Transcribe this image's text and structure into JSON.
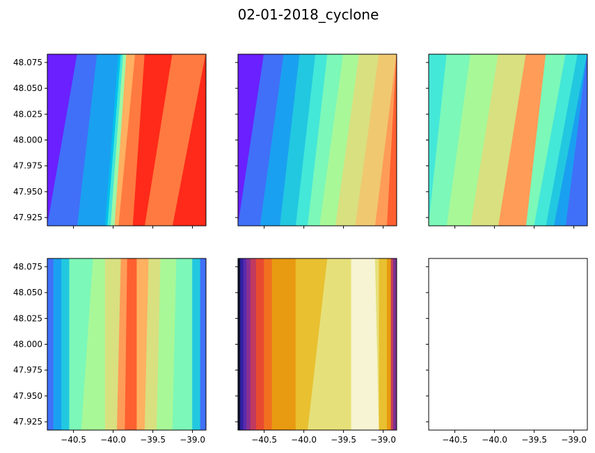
{
  "chart_data": {
    "type": "contour",
    "title": "02-01-2018_cyclone",
    "subplot_grid": [
      2,
      3
    ],
    "shared_axes": true,
    "xlim": [
      -40.83,
      -38.83
    ],
    "ylim": [
      47.917,
      48.083
    ],
    "x_ticks": [
      -40.5,
      -40.0,
      -39.5,
      -39.0
    ],
    "x_tick_labels": [
      "−40.5",
      "−40.0",
      "−39.5",
      "−39.0"
    ],
    "y_ticks": [
      47.925,
      47.95,
      47.975,
      48.0,
      48.025,
      48.05,
      48.075
    ],
    "y_tick_labels": [
      "47.925",
      "47.950",
      "47.975",
      "48.000",
      "48.025",
      "48.050",
      "48.075"
    ],
    "x_tick_labels_shown_on_row": 2,
    "y_tick_labels_shown_on_col": 1,
    "panels": [
      {
        "row": 1,
        "col": 1,
        "colormap": "rainbow",
        "bands": [
          {
            "x_bottom": -40.83,
            "x_top": -40.83,
            "color": "#6a20ff"
          },
          {
            "x_bottom": -40.83,
            "x_top": -40.45,
            "color": "#4070f8"
          },
          {
            "x_bottom": -40.45,
            "x_top": -40.2,
            "color": "#1aa0f0"
          },
          {
            "x_bottom": -40.1,
            "x_top": -39.93,
            "color": "#00c0ec"
          },
          {
            "x_bottom": -40.07,
            "x_top": -39.9,
            "color": "#44e8d8"
          },
          {
            "x_bottom": -40.03,
            "x_top": -39.87,
            "color": "#9cf7a6"
          },
          {
            "x_bottom": -39.98,
            "x_top": -39.83,
            "color": "#ffb060"
          },
          {
            "x_bottom": -39.93,
            "x_top": -39.72,
            "color": "#ff7a40"
          },
          {
            "x_bottom": -39.75,
            "x_top": -39.6,
            "color": "#ff2a1a"
          },
          {
            "x_bottom": -39.6,
            "x_top": -39.25,
            "color": "#ff7a40"
          },
          {
            "x_bottom": -39.25,
            "x_top": -38.83,
            "color": "#ff2a1a"
          }
        ]
      },
      {
        "row": 1,
        "col": 2,
        "colormap": "rainbow",
        "bands": [
          {
            "x_bottom": -40.83,
            "x_top": -40.83,
            "color": "#6a20ff"
          },
          {
            "x_bottom": -40.83,
            "x_top": -40.5,
            "color": "#4070f8"
          },
          {
            "x_bottom": -40.55,
            "x_top": -40.25,
            "color": "#1aa0f0"
          },
          {
            "x_bottom": -40.3,
            "x_top": -40.05,
            "color": "#22c8e0"
          },
          {
            "x_bottom": -40.1,
            "x_top": -39.85,
            "color": "#44e8d8"
          },
          {
            "x_bottom": -39.95,
            "x_top": -39.7,
            "color": "#7cf8b8"
          },
          {
            "x_bottom": -39.8,
            "x_top": -39.5,
            "color": "#a8f898"
          },
          {
            "x_bottom": -39.6,
            "x_top": -39.3,
            "color": "#d8e080"
          },
          {
            "x_bottom": -39.35,
            "x_top": -39.05,
            "color": "#f0c870"
          },
          {
            "x_bottom": -39.1,
            "x_top": -38.83,
            "color": "#ff9c58"
          },
          {
            "x_bottom": -38.95,
            "x_top": -38.83,
            "color": "#ff6030"
          }
        ]
      },
      {
        "row": 1,
        "col": 3,
        "colormap": "rainbow",
        "bands": [
          {
            "x_bottom": -40.83,
            "x_top": -40.83,
            "color": "#44e8d8"
          },
          {
            "x_bottom": -40.83,
            "x_top": -40.6,
            "color": "#7cf8b8"
          },
          {
            "x_bottom": -40.6,
            "x_top": -40.3,
            "color": "#a8f898"
          },
          {
            "x_bottom": -40.3,
            "x_top": -39.95,
            "color": "#d8e080"
          },
          {
            "x_bottom": -39.95,
            "x_top": -39.6,
            "color": "#ff9c58"
          },
          {
            "x_bottom": -39.6,
            "x_top": -39.35,
            "color": "#7cf8b8"
          },
          {
            "x_bottom": -39.5,
            "x_top": -39.1,
            "color": "#44e8d8"
          },
          {
            "x_bottom": -39.35,
            "x_top": -38.95,
            "color": "#22c8e0"
          },
          {
            "x_bottom": -39.25,
            "x_top": -38.83,
            "color": "#1aa0f0"
          },
          {
            "x_bottom": -39.1,
            "x_top": -38.83,
            "color": "#4070f8"
          }
        ]
      },
      {
        "row": 2,
        "col": 1,
        "colormap": "rainbow",
        "bands": [
          {
            "x_bottom": -40.83,
            "x_top": -40.83,
            "color": "#4070f8"
          },
          {
            "x_bottom": -40.75,
            "x_top": -40.75,
            "color": "#1aa0f0"
          },
          {
            "x_bottom": -40.65,
            "x_top": -40.65,
            "color": "#22c8e0"
          },
          {
            "x_bottom": -40.55,
            "x_top": -40.55,
            "color": "#7cf8b8"
          },
          {
            "x_bottom": -40.4,
            "x_top": -40.25,
            "color": "#a8f898"
          },
          {
            "x_bottom": -40.1,
            "x_top": -40.1,
            "color": "#d8e080"
          },
          {
            "x_bottom": -39.95,
            "x_top": -39.9,
            "color": "#ff9c58"
          },
          {
            "x_bottom": -39.85,
            "x_top": -39.82,
            "color": "#ff6030"
          },
          {
            "x_bottom": -39.7,
            "x_top": -39.7,
            "color": "#ffb060"
          },
          {
            "x_bottom": -39.6,
            "x_top": -39.55,
            "color": "#d8e080"
          },
          {
            "x_bottom": -39.45,
            "x_top": -39.4,
            "color": "#a8f898"
          },
          {
            "x_bottom": -39.25,
            "x_top": -39.2,
            "color": "#7cf8b8"
          },
          {
            "x_bottom": -39.0,
            "x_top": -39.0,
            "color": "#22c8e0"
          },
          {
            "x_bottom": -38.9,
            "x_top": -38.9,
            "color": "#4070f8"
          }
        ]
      },
      {
        "row": 2,
        "col": 2,
        "colormap": "CMRmap",
        "bands": [
          {
            "x_bottom": -40.83,
            "x_top": -40.83,
            "color": "#101030"
          },
          {
            "x_bottom": -40.8,
            "x_top": -40.8,
            "color": "#3020a0"
          },
          {
            "x_bottom": -40.76,
            "x_top": -40.76,
            "color": "#5a2ab0"
          },
          {
            "x_bottom": -40.72,
            "x_top": -40.72,
            "color": "#8a3090"
          },
          {
            "x_bottom": -40.67,
            "x_top": -40.67,
            "color": "#c03a60"
          },
          {
            "x_bottom": -40.6,
            "x_top": -40.6,
            "color": "#e84a30"
          },
          {
            "x_bottom": -40.5,
            "x_top": -40.5,
            "color": "#f07020"
          },
          {
            "x_bottom": -40.4,
            "x_top": -40.4,
            "color": "#e89a10"
          },
          {
            "x_bottom": -40.1,
            "x_top": -40.1,
            "color": "#e8c030"
          },
          {
            "x_bottom": -39.95,
            "x_top": -39.7,
            "color": "#e6e07a"
          },
          {
            "x_bottom": -39.4,
            "x_top": -39.4,
            "color": "#f6f4d2"
          },
          {
            "x_bottom": -39.05,
            "x_top": -39.1,
            "color": "#e6e07a"
          },
          {
            "x_bottom": -39.05,
            "x_top": -39.05,
            "color": "#e8c030"
          },
          {
            "x_bottom": -38.95,
            "x_top": -38.95,
            "color": "#e89a10"
          },
          {
            "x_bottom": -38.9,
            "x_top": -38.9,
            "color": "#c03a60"
          },
          {
            "x_bottom": -38.87,
            "x_top": -38.87,
            "color": "#7a3090"
          }
        ]
      },
      {
        "row": 2,
        "col": 3,
        "empty": true
      }
    ]
  }
}
